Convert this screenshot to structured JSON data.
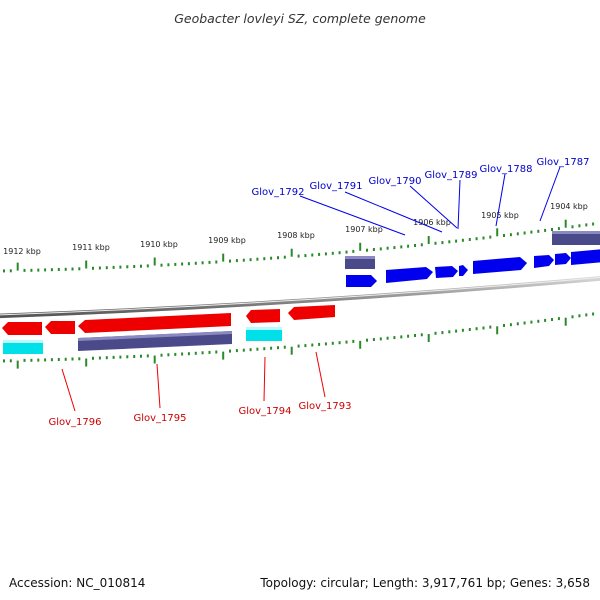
{
  "title": "Geobacter lovleyi SZ, complete genome",
  "footer": {
    "accession": "Accession: NC_010814",
    "topology": "Topology: circular; Length: 3,917,761 bp; Genes: 3,658"
  },
  "colors": {
    "plus_gene": "#0000ee",
    "minus_gene": "#ee0000",
    "plus_label": "#0000cc",
    "minus_label": "#cc0000",
    "rna_plus": "#4a4a8a",
    "rna_minus": "#4a4a8a",
    "cyan_feature": "#00e0e8",
    "ticks": "#2a8a2a",
    "backbone": "#8a8a8a"
  },
  "kbp_ticks": [
    "1912 kbp",
    "1911 kbp",
    "1910 kbp",
    "1909 kbp",
    "1908 kbp",
    "1907 kbp",
    "1906 kbp",
    "1905 kbp",
    "1904 kbp"
  ],
  "gene_labels": {
    "plus": [
      "Glov_1792",
      "Glov_1791",
      "Glov_1790",
      "Glov_1789",
      "Glov_1788",
      "Glov_1787"
    ],
    "minus": [
      "Glov_1796",
      "Glov_1795",
      "Glov_1794",
      "Glov_1793"
    ]
  }
}
